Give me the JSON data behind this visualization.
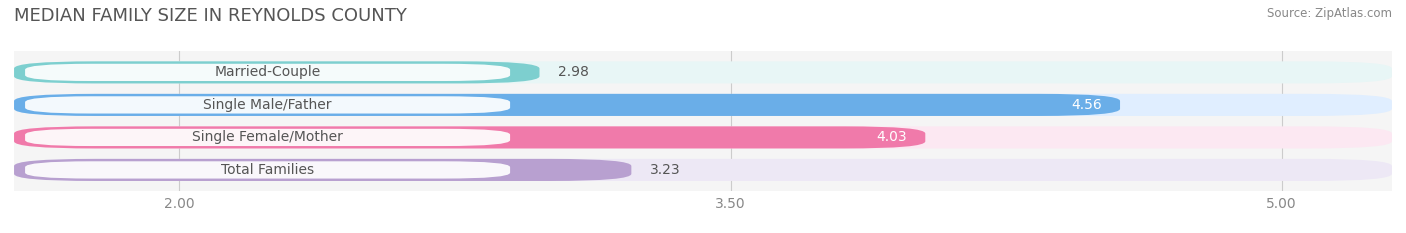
{
  "title": "MEDIAN FAMILY SIZE IN REYNOLDS COUNTY",
  "source": "Source: ZipAtlas.com",
  "categories": [
    "Married-Couple",
    "Single Male/Father",
    "Single Female/Mother",
    "Total Families"
  ],
  "values": [
    2.98,
    4.56,
    4.03,
    3.23
  ],
  "bar_colors": [
    "#7dcfcf",
    "#6aaee8",
    "#f07aaa",
    "#b8a0d0"
  ],
  "bar_bg_colors": [
    "#e8f6f6",
    "#e0eeff",
    "#fce8f2",
    "#ede8f5"
  ],
  "xmin": 1.55,
  "xlim_max": 5.3,
  "xticks": [
    2.0,
    3.5,
    5.0
  ],
  "xlabel_fontsize": 10,
  "title_fontsize": 13,
  "value_fontsize": 10,
  "label_fontsize": 10,
  "background_color": "#ffffff",
  "plot_bg_color": "#f5f5f5"
}
